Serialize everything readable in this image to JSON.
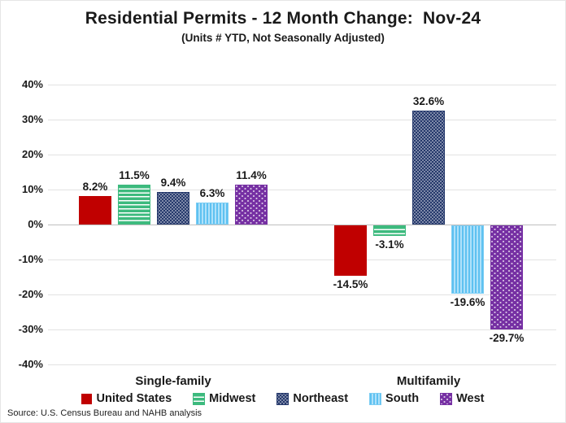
{
  "chart_data": {
    "type": "bar",
    "title": "Residential Permits - 12 Month Change:  Nov-24",
    "subtitle": "(Units # YTD, Not Seasonally Adjusted)",
    "categories": [
      "Single-family",
      "Multifamily"
    ],
    "series": [
      {
        "name": "United States",
        "pattern": "solid",
        "color": "#c00000",
        "values": [
          8.2,
          -14.5
        ],
        "labels": [
          "8.2%",
          "-14.5%"
        ]
      },
      {
        "name": "Midwest",
        "pattern": "horizontal-stripes",
        "color": "#3dba7e",
        "values": [
          11.5,
          -3.1
        ],
        "labels": [
          "11.5%",
          "-3.1%"
        ]
      },
      {
        "name": "Northeast",
        "pattern": "dots-dense",
        "color": "#24386b",
        "values": [
          9.4,
          32.6
        ],
        "labels": [
          "9.4%",
          "32.6%"
        ]
      },
      {
        "name": "South",
        "pattern": "vertical-stripes",
        "color": "#5ec1f1",
        "values": [
          6.3,
          -19.6
        ],
        "labels": [
          "6.3%",
          "-19.6%"
        ]
      },
      {
        "name": "West",
        "pattern": "dots-sparse",
        "color": "#7630a3",
        "values": [
          11.4,
          -29.7
        ],
        "labels": [
          "11.4%",
          "-29.7%"
        ]
      }
    ],
    "yticks": [
      {
        "value": 40,
        "label": "40%"
      },
      {
        "value": 30,
        "label": "30%"
      },
      {
        "value": 20,
        "label": "20%"
      },
      {
        "value": 10,
        "label": "10%"
      },
      {
        "value": 0,
        "label": "0%"
      },
      {
        "value": -10,
        "label": "-10%"
      },
      {
        "value": -20,
        "label": "-20%"
      },
      {
        "value": -30,
        "label": "-30%"
      },
      {
        "value": -40,
        "label": "-40%"
      }
    ],
    "ylim": [
      -40,
      40
    ],
    "xlabel": "",
    "ylabel": "",
    "grid": true,
    "legend_position": "bottom",
    "source": "Source: U.S. Census Bureau and NAHB analysis"
  }
}
